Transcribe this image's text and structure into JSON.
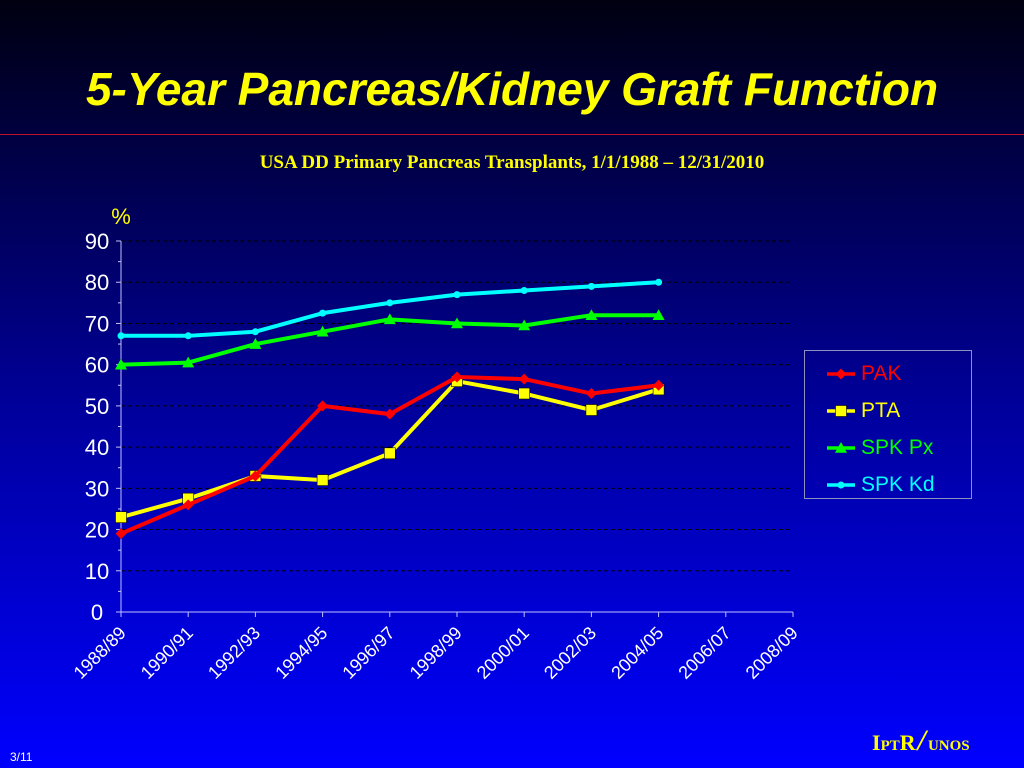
{
  "slide": {
    "title": "5-Year Pancreas/Kidney Graft Function",
    "subtitle": "USA DD Primary Pancreas Transplants, 1/1/1988 – 12/31/2010",
    "number": "3/11",
    "logo": {
      "i": "I",
      "p": "PT",
      "r": "R",
      "slash": "/",
      "unos": "UNOS"
    }
  },
  "chart_data": {
    "type": "line",
    "title": "",
    "xlabel": "",
    "ylabel": "%",
    "ylim": [
      0,
      90
    ],
    "yticks": [
      0,
      10,
      20,
      30,
      40,
      50,
      60,
      70,
      80,
      90
    ],
    "grid": "horizontal-dashed",
    "legend_position": "right",
    "categories": [
      "1988/89",
      "1990/91",
      "1992/93",
      "1994/95",
      "1996/97",
      "1998/99",
      "2000/01",
      "2002/03",
      "2004/05",
      "2006/07",
      "2008/09"
    ],
    "series": [
      {
        "name": "PAK",
        "color": "#ff0000",
        "marker": "diamond",
        "values": [
          19,
          26,
          33,
          50,
          48,
          57,
          56.5,
          53,
          55,
          null,
          null
        ]
      },
      {
        "name": "PTA",
        "color": "#ffff00",
        "marker": "square",
        "values": [
          23,
          27.5,
          33,
          32,
          38.5,
          56,
          53,
          49,
          54,
          null,
          null
        ]
      },
      {
        "name": "SPK Px",
        "color": "#00ff00",
        "marker": "triangle",
        "values": [
          60,
          60.5,
          65,
          68,
          71,
          70,
          69.5,
          72,
          72,
          null,
          null
        ]
      },
      {
        "name": "SPK Kd",
        "color": "#00ffff",
        "marker": "circle",
        "values": [
          67,
          67,
          68,
          72.5,
          75,
          77,
          78,
          79,
          80,
          null,
          null
        ]
      }
    ]
  }
}
